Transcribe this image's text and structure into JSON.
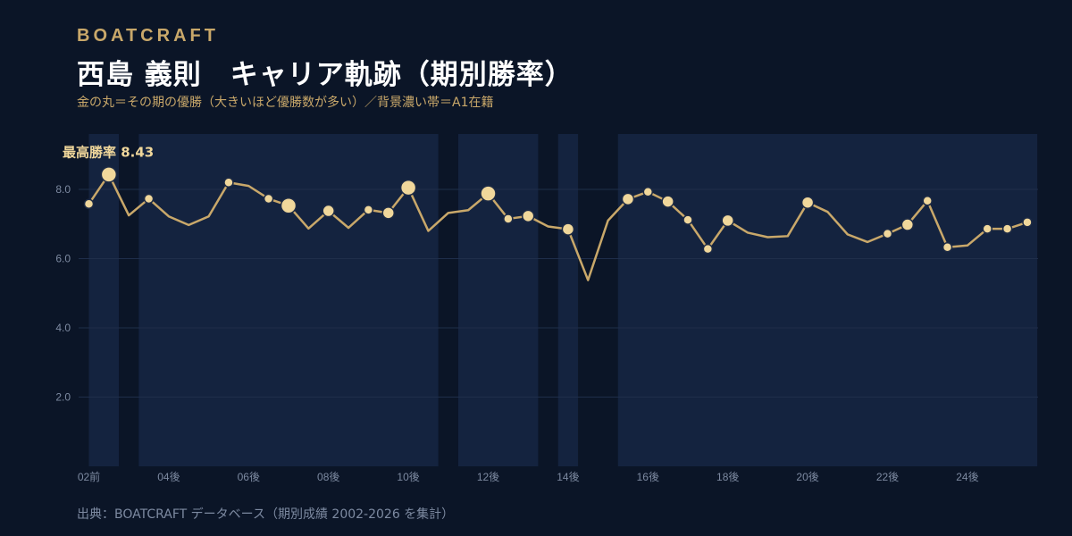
{
  "header": {
    "brand": "BOATCRAFT",
    "title": "西島 義則　キャリア軌跡（期別勝率）",
    "subtitle": "金の丸＝その期の優勝（大きいほど優勝数が多い）／背景濃い帯＝A1在籍"
  },
  "footer": {
    "source": "出典：BOATCRAFT データベース（期別成績 2002-2026 を集計）"
  },
  "colors": {
    "background": "#0b1527",
    "a1_band": "#14233f",
    "line": "#c9a86a",
    "marker_fill": "#f0d79b",
    "marker_stroke": "#1d2a44",
    "grid": "#1f2e4a",
    "accent_text": "#c9a86a"
  },
  "chart_data": {
    "type": "line",
    "title": "西島 義則　キャリア軌跡（期別勝率）",
    "ylim": [
      0,
      9.5
    ],
    "yticks": [
      2.0,
      4.0,
      6.0,
      8.0
    ],
    "ytick_labels": [
      "2.0",
      "4.0",
      "6.0",
      "8.0"
    ],
    "x_tick_labels": [
      "02前",
      "04後",
      "06後",
      "08後",
      "10後",
      "12後",
      "14後",
      "16後",
      "18後",
      "20後",
      "22後",
      "24後"
    ],
    "x_tick_indices": [
      0,
      4,
      8,
      12,
      16,
      20,
      24,
      28,
      32,
      36,
      40,
      44
    ],
    "periods": 48,
    "win_rate": [
      7.58,
      8.43,
      7.25,
      7.73,
      7.22,
      6.97,
      7.22,
      8.2,
      8.1,
      7.73,
      7.53,
      6.87,
      7.38,
      6.89,
      7.41,
      7.32,
      8.05,
      6.8,
      7.32,
      7.4,
      7.88,
      7.15,
      7.23,
      6.93,
      6.85,
      5.38,
      7.1,
      7.72,
      7.93,
      7.65,
      7.12,
      6.28,
      7.1,
      6.75,
      6.62,
      6.65,
      7.62,
      7.35,
      6.7,
      6.48,
      6.72,
      6.98,
      7.67,
      6.33,
      6.38,
      6.86,
      6.86,
      7.05
    ],
    "wins": [
      1,
      3,
      0,
      1,
      0,
      0,
      0,
      1,
      0,
      1,
      3,
      0,
      2,
      0,
      1,
      2,
      3,
      0,
      0,
      0,
      3,
      1,
      2,
      0,
      2,
      0,
      0,
      2,
      1,
      2,
      1,
      1,
      2,
      0,
      0,
      0,
      2,
      0,
      0,
      0,
      1,
      2,
      1,
      1,
      0,
      1,
      1,
      1
    ],
    "a1_bands": [
      [
        0,
        1.5
      ],
      [
        2.5,
        17.5
      ],
      [
        18.5,
        22.5
      ],
      [
        23.5,
        24.5
      ],
      [
        26.5,
        47.5
      ]
    ],
    "peak": {
      "label": "最高勝率 8.43",
      "index": 1
    },
    "legend": "none",
    "grid": true
  }
}
